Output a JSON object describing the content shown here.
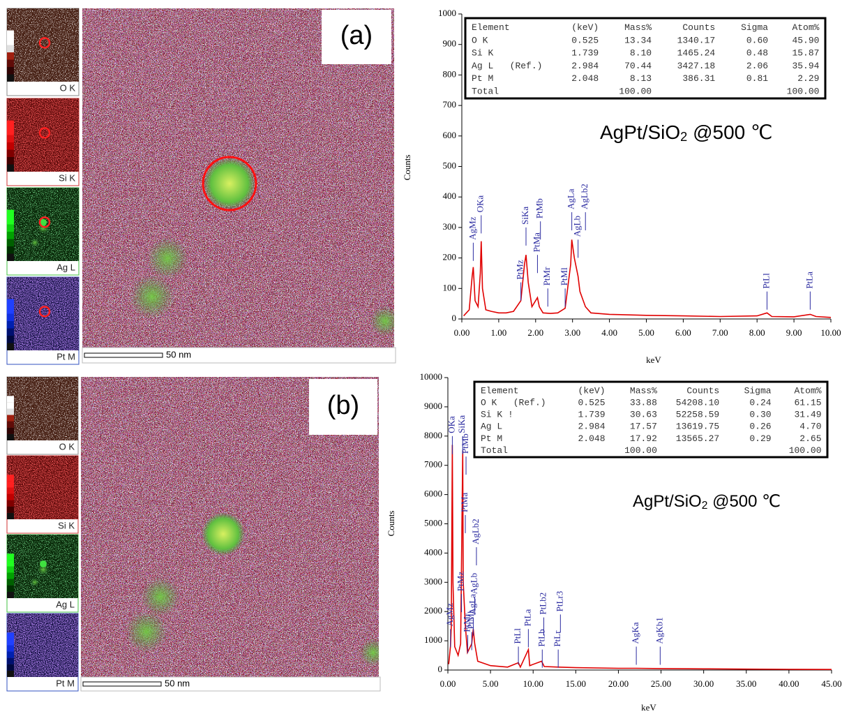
{
  "panels": [
    {
      "label": "(a)",
      "maps": [
        "O K",
        "Si K",
        "Ag L",
        "Pt M"
      ],
      "scale_bar": "50 nm"
    },
    {
      "label": "(b)",
      "maps": [
        "O K",
        "Si K",
        "Ag L",
        "Pt M"
      ],
      "scale_bar": "50 nm"
    }
  ],
  "chart_data": [
    {
      "type": "line",
      "xlabel": "keV",
      "ylabel": "Counts",
      "annotation": [
        "AgPt/SiO",
        "2",
        " @500 ℃"
      ],
      "color": "#e00000",
      "marker_color": "#2b2ba0",
      "xlim": [
        0,
        10
      ],
      "xticks": [
        {
          "value": 0,
          "label": "0.00"
        },
        {
          "value": 1,
          "label": "1.00"
        },
        {
          "value": 2,
          "label": "2.00"
        },
        {
          "value": 3,
          "label": "3.00"
        },
        {
          "value": 4,
          "label": "4.00"
        },
        {
          "value": 5,
          "label": "5.00"
        },
        {
          "value": 6,
          "label": "6.00"
        },
        {
          "value": 7,
          "label": "7.00"
        },
        {
          "value": 8,
          "label": "8.00"
        },
        {
          "value": 9,
          "label": "9.00"
        },
        {
          "value": 10,
          "label": "10.00"
        }
      ],
      "ylim": [
        0,
        1000
      ],
      "yticks": [
        0,
        100,
        200,
        300,
        400,
        500,
        600,
        700,
        800,
        900,
        1000
      ],
      "x": [
        0.05,
        0.2,
        0.28,
        0.31,
        0.36,
        0.44,
        0.5,
        0.525,
        0.56,
        0.65,
        0.8,
        1.0,
        1.2,
        1.4,
        1.6,
        1.7,
        1.74,
        1.8,
        1.9,
        2.05,
        2.1,
        2.2,
        2.4,
        2.6,
        2.8,
        2.95,
        2.98,
        3.05,
        3.15,
        3.2,
        3.35,
        3.5,
        4,
        5,
        6,
        7,
        8,
        8.27,
        8.4,
        9,
        9.44,
        9.6,
        10
      ],
      "values": [
        10,
        30,
        140,
        170,
        60,
        40,
        150,
        255,
        100,
        30,
        25,
        20,
        20,
        25,
        60,
        180,
        210,
        120,
        40,
        70,
        40,
        20,
        18,
        20,
        35,
        180,
        260,
        200,
        140,
        90,
        40,
        20,
        15,
        12,
        10,
        8,
        10,
        20,
        8,
        7,
        15,
        8,
        5
      ],
      "peaks": [
        {
          "label": "AgMz",
          "x": 0.31,
          "y": 250
        },
        {
          "label": "OKa",
          "x": 0.525,
          "y": 340
        },
        {
          "label": "PtMz",
          "x": 1.6,
          "y": 120
        },
        {
          "label": "SiKa",
          "x": 1.739,
          "y": 300
        },
        {
          "label": "PtMa",
          "x": 2.05,
          "y": 210
        },
        {
          "label": "PtMb",
          "x": 2.13,
          "y": 320
        },
        {
          "label": "PtMr",
          "x": 2.33,
          "y": 100
        },
        {
          "label": "PtMl",
          "x": 2.8,
          "y": 100
        },
        {
          "label": "AgLa",
          "x": 2.98,
          "y": 350
        },
        {
          "label": "AgLb",
          "x": 3.15,
          "y": 260
        },
        {
          "label": "AgLb2",
          "x": 3.35,
          "y": 350
        },
        {
          "label": "PtLl",
          "x": 8.27,
          "y": 90
        },
        {
          "label": "PtLa",
          "x": 9.44,
          "y": 90
        }
      ],
      "table": {
        "columns": [
          "Element",
          "(keV)",
          "Mass%",
          "Counts",
          "Sigma",
          "Atom%"
        ],
        "rows": [
          [
            "O K",
            "0.525",
            "13.34",
            "1340.17",
            "0.60",
            "45.90"
          ],
          [
            "Si K",
            "1.739",
            "8.10",
            "1465.24",
            "0.48",
            "15.87"
          ],
          [
            "Ag L   (Ref.)",
            "2.984",
            "70.44",
            "3427.18",
            "2.06",
            "35.94"
          ],
          [
            "Pt M",
            "2.048",
            "8.13",
            "386.31",
            "0.81",
            "2.29"
          ],
          [
            "Total",
            null,
            "100.00",
            null,
            null,
            "100.00"
          ]
        ]
      }
    },
    {
      "type": "line",
      "xlabel": "keV",
      "ylabel": "Counts",
      "annotation": [
        "AgPt/SiO",
        "2",
        " @500 ℃"
      ],
      "color": "#e00000",
      "marker_color": "#2b2ba0",
      "xlim": [
        0,
        45
      ],
      "xticks": [
        {
          "value": 0,
          "label": "0.00"
        },
        {
          "value": 5,
          "label": "5.00"
        },
        {
          "value": 10,
          "label": "10.00"
        },
        {
          "value": 15,
          "label": "15.00"
        },
        {
          "value": 20,
          "label": "20.00"
        },
        {
          "value": 25,
          "label": "25.00"
        },
        {
          "value": 30,
          "label": "30.00"
        },
        {
          "value": 35,
          "label": "35.00"
        },
        {
          "value": 40,
          "label": "40.00"
        },
        {
          "value": 45,
          "label": "45.00"
        }
      ],
      "ylim": [
        0,
        10000
      ],
      "yticks": [
        0,
        1000,
        2000,
        3000,
        4000,
        5000,
        6000,
        7000,
        8000,
        9000,
        10000
      ],
      "x": [
        0.1,
        0.3,
        0.4,
        0.525,
        0.6,
        0.8,
        1.2,
        1.5,
        1.739,
        1.8,
        2.05,
        2.3,
        2.8,
        2.98,
        3.15,
        3.5,
        5,
        7,
        8.27,
        8.5,
        9.44,
        9.6,
        11,
        11.3,
        13,
        15,
        20,
        22.1,
        25,
        30,
        35,
        40,
        45
      ],
      "values": [
        200,
        800,
        1500,
        7700,
        3000,
        800,
        500,
        900,
        7500,
        3000,
        1500,
        600,
        900,
        1400,
        900,
        300,
        150,
        100,
        250,
        100,
        700,
        150,
        300,
        120,
        100,
        80,
        60,
        60,
        50,
        40,
        30,
        25,
        20
      ],
      "peaks": [
        {
          "label": "AgMz",
          "x": 0.31,
          "y": 1400
        },
        {
          "label": "OKa",
          "x": 0.525,
          "y": 8000
        },
        {
          "label": "SiKa",
          "x": 1.739,
          "y": 8000
        },
        {
          "label": "PtMz",
          "x": 1.6,
          "y": 2600
        },
        {
          "label": "PtMa",
          "x": 2.05,
          "y": 5300
        },
        {
          "label": "PtMb",
          "x": 2.13,
          "y": 7300
        },
        {
          "label": "PtMr",
          "x": 2.33,
          "y": 1200
        },
        {
          "label": "PtMl",
          "x": 2.8,
          "y": 1300
        },
        {
          "label": "AgLa",
          "x": 2.98,
          "y": 1800
        },
        {
          "label": "AgLb",
          "x": 3.15,
          "y": 2500
        },
        {
          "label": "AgLb2",
          "x": 3.35,
          "y": 4200
        },
        {
          "label": "PtLl",
          "x": 8.27,
          "y": 800
        },
        {
          "label": "PtLa",
          "x": 9.44,
          "y": 1400
        },
        {
          "label": "PtLb",
          "x": 11.07,
          "y": 700
        },
        {
          "label": "PtLb2",
          "x": 11.25,
          "y": 1800
        },
        {
          "label": "PtLr",
          "x": 12.94,
          "y": 700
        },
        {
          "label": "PtLr3",
          "x": 13.2,
          "y": 1900
        },
        {
          "label": "AgKa",
          "x": 22.1,
          "y": 800
        },
        {
          "label": "AgKb1",
          "x": 24.9,
          "y": 800
        }
      ],
      "table": {
        "columns": [
          "Element",
          "(keV)",
          "Mass%",
          "Counts",
          "Sigma",
          "Atom%"
        ],
        "rows": [
          [
            "O K   (Ref.)",
            "0.525",
            "33.88",
            "54208.10",
            "0.24",
            "61.15"
          ],
          [
            "Si K !",
            "1.739",
            "30.63",
            "52258.59",
            "0.30",
            "31.49"
          ],
          [
            "Ag L",
            "2.984",
            "17.57",
            "13619.75",
            "0.26",
            "4.70"
          ],
          [
            "Pt M",
            "2.048",
            "17.92",
            "13565.27",
            "0.29",
            "2.65"
          ],
          [
            "Total",
            null,
            "100.00",
            null,
            null,
            "100.00"
          ]
        ]
      }
    }
  ]
}
